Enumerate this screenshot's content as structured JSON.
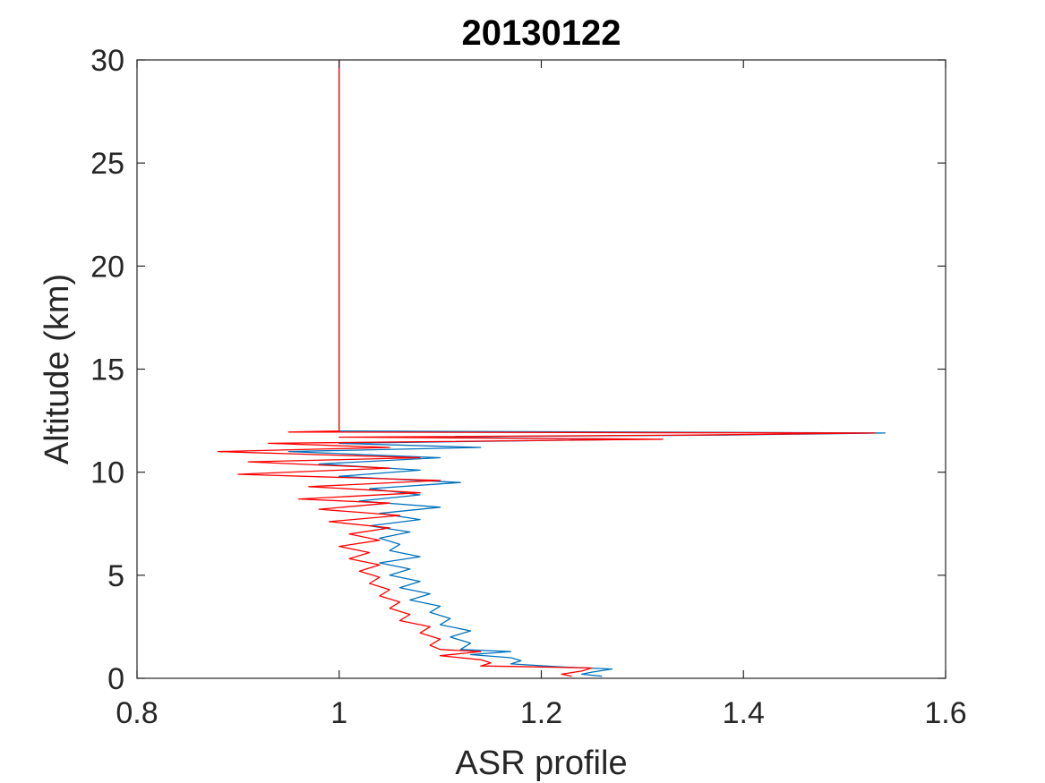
{
  "chart_data": {
    "type": "line",
    "title": "20130122",
    "xlabel": "ASR profile",
    "ylabel": "Altitude (km)",
    "xlim": [
      0.8,
      1.6
    ],
    "ylim": [
      0,
      30
    ],
    "xticks": [
      "0.8",
      "1",
      "1.2",
      "1.4",
      "1.6"
    ],
    "yticks": [
      "0",
      "5",
      "10",
      "15",
      "20",
      "25",
      "30"
    ],
    "grid": false,
    "legend": "none",
    "series": [
      {
        "color": "#0072BD",
        "points": [
          [
            1.26,
            0.1
          ],
          [
            1.24,
            0.2
          ],
          [
            1.25,
            0.3
          ],
          [
            1.27,
            0.45
          ],
          [
            1.22,
            0.55
          ],
          [
            1.17,
            0.7
          ],
          [
            1.18,
            0.85
          ],
          [
            1.17,
            1.0
          ],
          [
            1.13,
            1.15
          ],
          [
            1.17,
            1.3
          ],
          [
            1.12,
            1.4
          ],
          [
            1.13,
            1.7
          ],
          [
            1.11,
            2.0
          ],
          [
            1.13,
            2.3
          ],
          [
            1.1,
            2.6
          ],
          [
            1.11,
            2.9
          ],
          [
            1.09,
            3.2
          ],
          [
            1.1,
            3.5
          ],
          [
            1.07,
            3.8
          ],
          [
            1.09,
            4.1
          ],
          [
            1.06,
            4.4
          ],
          [
            1.08,
            4.7
          ],
          [
            1.05,
            5.0
          ],
          [
            1.07,
            5.3
          ],
          [
            1.04,
            5.6
          ],
          [
            1.08,
            5.9
          ],
          [
            1.05,
            6.2
          ],
          [
            1.06,
            6.5
          ],
          [
            1.04,
            6.8
          ],
          [
            1.07,
            7.1
          ],
          [
            1.03,
            7.4
          ],
          [
            1.08,
            7.7
          ],
          [
            1.04,
            8.0
          ],
          [
            1.1,
            8.3
          ],
          [
            1.02,
            8.6
          ],
          [
            1.08,
            8.9
          ],
          [
            1.03,
            9.2
          ],
          [
            1.12,
            9.5
          ],
          [
            1.0,
            9.8
          ],
          [
            1.08,
            10.1
          ],
          [
            0.98,
            10.4
          ],
          [
            1.1,
            10.7
          ],
          [
            0.95,
            11.0
          ],
          [
            1.14,
            11.2
          ],
          [
            1.0,
            11.4
          ],
          [
            1.3,
            11.6
          ],
          [
            1.05,
            11.7
          ],
          [
            1.38,
            11.8
          ],
          [
            1.54,
            11.9
          ],
          [
            1.0,
            12.0
          ],
          [
            1.0,
            12.1
          ],
          [
            1.0,
            30.0
          ]
        ]
      },
      {
        "color": "#FF0000",
        "points": [
          [
            1.23,
            0.1
          ],
          [
            1.22,
            0.2
          ],
          [
            1.24,
            0.35
          ],
          [
            1.25,
            0.5
          ],
          [
            1.2,
            0.55
          ],
          [
            1.14,
            0.6
          ],
          [
            1.15,
            0.75
          ],
          [
            1.14,
            0.9
          ],
          [
            1.1,
            1.1
          ],
          [
            1.14,
            1.3
          ],
          [
            1.1,
            1.4
          ],
          [
            1.09,
            1.6
          ],
          [
            1.1,
            1.9
          ],
          [
            1.08,
            2.2
          ],
          [
            1.09,
            2.5
          ],
          [
            1.06,
            2.8
          ],
          [
            1.07,
            3.1
          ],
          [
            1.05,
            3.4
          ],
          [
            1.06,
            3.7
          ],
          [
            1.04,
            4.0
          ],
          [
            1.05,
            4.3
          ],
          [
            1.03,
            4.6
          ],
          [
            1.04,
            4.9
          ],
          [
            1.02,
            5.2
          ],
          [
            1.04,
            5.5
          ],
          [
            1.01,
            5.8
          ],
          [
            1.03,
            6.1
          ],
          [
            1.0,
            6.4
          ],
          [
            1.04,
            6.7
          ],
          [
            1.01,
            7.0
          ],
          [
            1.05,
            7.3
          ],
          [
            0.99,
            7.6
          ],
          [
            1.06,
            7.9
          ],
          [
            0.98,
            8.2
          ],
          [
            1.05,
            8.5
          ],
          [
            0.96,
            8.7
          ],
          [
            1.08,
            9.0
          ],
          [
            0.97,
            9.3
          ],
          [
            1.1,
            9.6
          ],
          [
            0.9,
            9.9
          ],
          [
            1.05,
            10.2
          ],
          [
            0.91,
            10.5
          ],
          [
            1.08,
            10.7
          ],
          [
            0.88,
            11.0
          ],
          [
            1.05,
            11.2
          ],
          [
            0.93,
            11.4
          ],
          [
            1.32,
            11.6
          ],
          [
            1.0,
            11.7
          ],
          [
            1.35,
            11.8
          ],
          [
            1.53,
            11.9
          ],
          [
            0.95,
            11.95
          ],
          [
            1.0,
            12.0
          ],
          [
            1.0,
            30.0
          ]
        ]
      }
    ]
  }
}
